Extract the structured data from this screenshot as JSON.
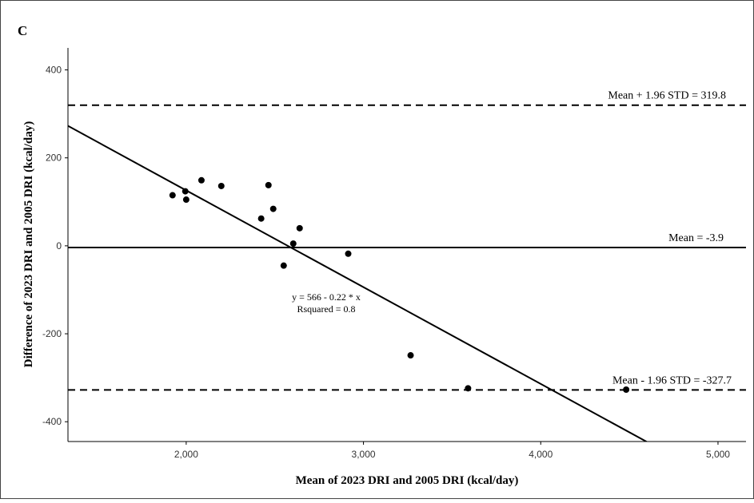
{
  "chart_data": {
    "type": "scatter",
    "panel_label": "C",
    "x_label": "Mean of 2023 DRI and 2005 DRI (kcal/day)",
    "y_label": "Difference of 2023 DRI and 2005 DRI (kcal/day)",
    "x": [
      1923,
      1995,
      2000,
      2086,
      2198,
      2464,
      2491,
      2423,
      2640,
      2604,
      2550,
      2914,
      3266,
      3590,
      4482
    ],
    "values": [
      115,
      124,
      105,
      149,
      136,
      138,
      84,
      62,
      40,
      5,
      -45,
      -18,
      -249,
      -324,
      -327
    ],
    "color": "#000000",
    "xlim": [
      1333,
      5158
    ],
    "ylim": [
      -445,
      450
    ],
    "xticks": [
      {
        "value": 2000,
        "label": "2,000"
      },
      {
        "value": 3000,
        "label": "3,000"
      },
      {
        "value": 4000,
        "label": "4,000"
      },
      {
        "value": 5000,
        "label": "5,000"
      }
    ],
    "yticks": [
      400,
      200,
      0,
      -200,
      -400
    ],
    "reference_lines": [
      {
        "value": 319.8,
        "label": "Mean + 1.96 STD = 319.8",
        "style": "dashed"
      },
      {
        "value": -3.9,
        "label": "Mean = -3.9",
        "style": "solid"
      },
      {
        "value": -327.7,
        "label": "Mean - 1.96 STD = -327.7",
        "style": "dashed"
      }
    ],
    "regression": {
      "intercept": 566,
      "slope": -0.22,
      "equation": "y = 566 - 0.22 * x",
      "r_squared_label": "Rsquared = 0.8"
    }
  }
}
